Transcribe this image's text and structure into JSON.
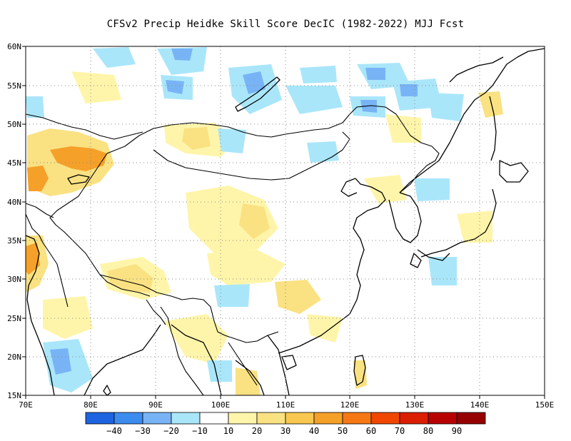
{
  "title": "CFSv2 Precip Heidke Skill Score DecIC (1982-2022) MJJ Fcst",
  "map": {
    "lon_range": [
      70,
      150
    ],
    "lat_range": [
      15,
      60
    ],
    "lon_ticks": [
      "70E",
      "80E",
      "90E",
      "100E",
      "110E",
      "120E",
      "130E",
      "140E",
      "150E"
    ],
    "lat_ticks": [
      "15N",
      "20N",
      "25N",
      "30N",
      "35N",
      "40N",
      "45N",
      "50N",
      "55N",
      "60N"
    ],
    "gridlines": "dotted"
  },
  "colorbar": {
    "colors": [
      "#1e64e0",
      "#3c8cf0",
      "#78b4f5",
      "#aae6fa",
      "#ffffff",
      "#fff5aa",
      "#fae182",
      "#fac850",
      "#f5a028",
      "#f57814",
      "#f04600",
      "#dc1e00",
      "#b90000",
      "#960000"
    ],
    "labels": [
      "−40",
      "−30",
      "−20",
      "−10",
      "10",
      "20",
      "30",
      "40",
      "50",
      "60",
      "70",
      "80",
      "90"
    ]
  }
}
